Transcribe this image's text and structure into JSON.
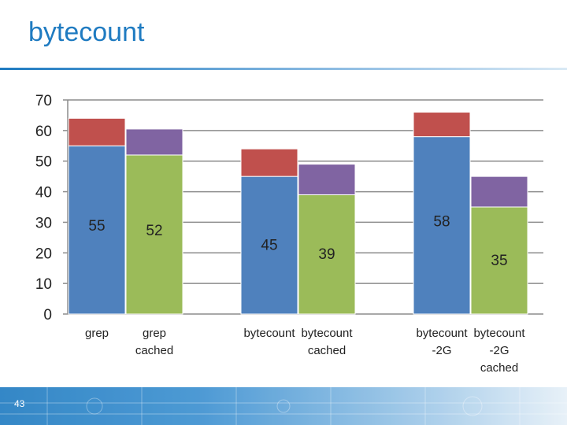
{
  "slide": {
    "title": "bytecount",
    "page_number": "43"
  },
  "colors": {
    "blue": "#4f81bd",
    "green": "#9bbb59",
    "red": "#c0504d",
    "purple": "#8064a2",
    "title": "#1f7bc1"
  },
  "chart_data": {
    "type": "bar",
    "stacked": true,
    "title": "",
    "xlabel": "",
    "ylabel": "",
    "ylim": [
      0,
      70
    ],
    "yticks": [
      0,
      10,
      20,
      30,
      40,
      50,
      60,
      70
    ],
    "grid": true,
    "legend": "none",
    "groups": [
      {
        "bars": [
          {
            "label": [
              "grep"
            ],
            "base": 55,
            "top": 9,
            "data_label": "55",
            "base_color": "blue",
            "top_color": "red"
          },
          {
            "label": [
              "grep",
              "cached"
            ],
            "base": 52,
            "top": 8.5,
            "data_label": "52",
            "base_color": "green",
            "top_color": "purple"
          }
        ]
      },
      {
        "bars": [
          {
            "label": [
              "bytecount"
            ],
            "base": 45,
            "top": 9,
            "data_label": "45",
            "base_color": "blue",
            "top_color": "red"
          },
          {
            "label": [
              "bytecount",
              "cached"
            ],
            "base": 39,
            "top": 10,
            "data_label": "39",
            "base_color": "green",
            "top_color": "purple"
          }
        ]
      },
      {
        "bars": [
          {
            "label": [
              "bytecount",
              "-2G"
            ],
            "base": 58,
            "top": 8,
            "data_label": "58",
            "base_color": "blue",
            "top_color": "red"
          },
          {
            "label": [
              "bytecount",
              "-2G",
              "cached"
            ],
            "base": 35,
            "top": 10,
            "data_label": "35",
            "base_color": "green",
            "top_color": "purple"
          }
        ]
      }
    ]
  }
}
